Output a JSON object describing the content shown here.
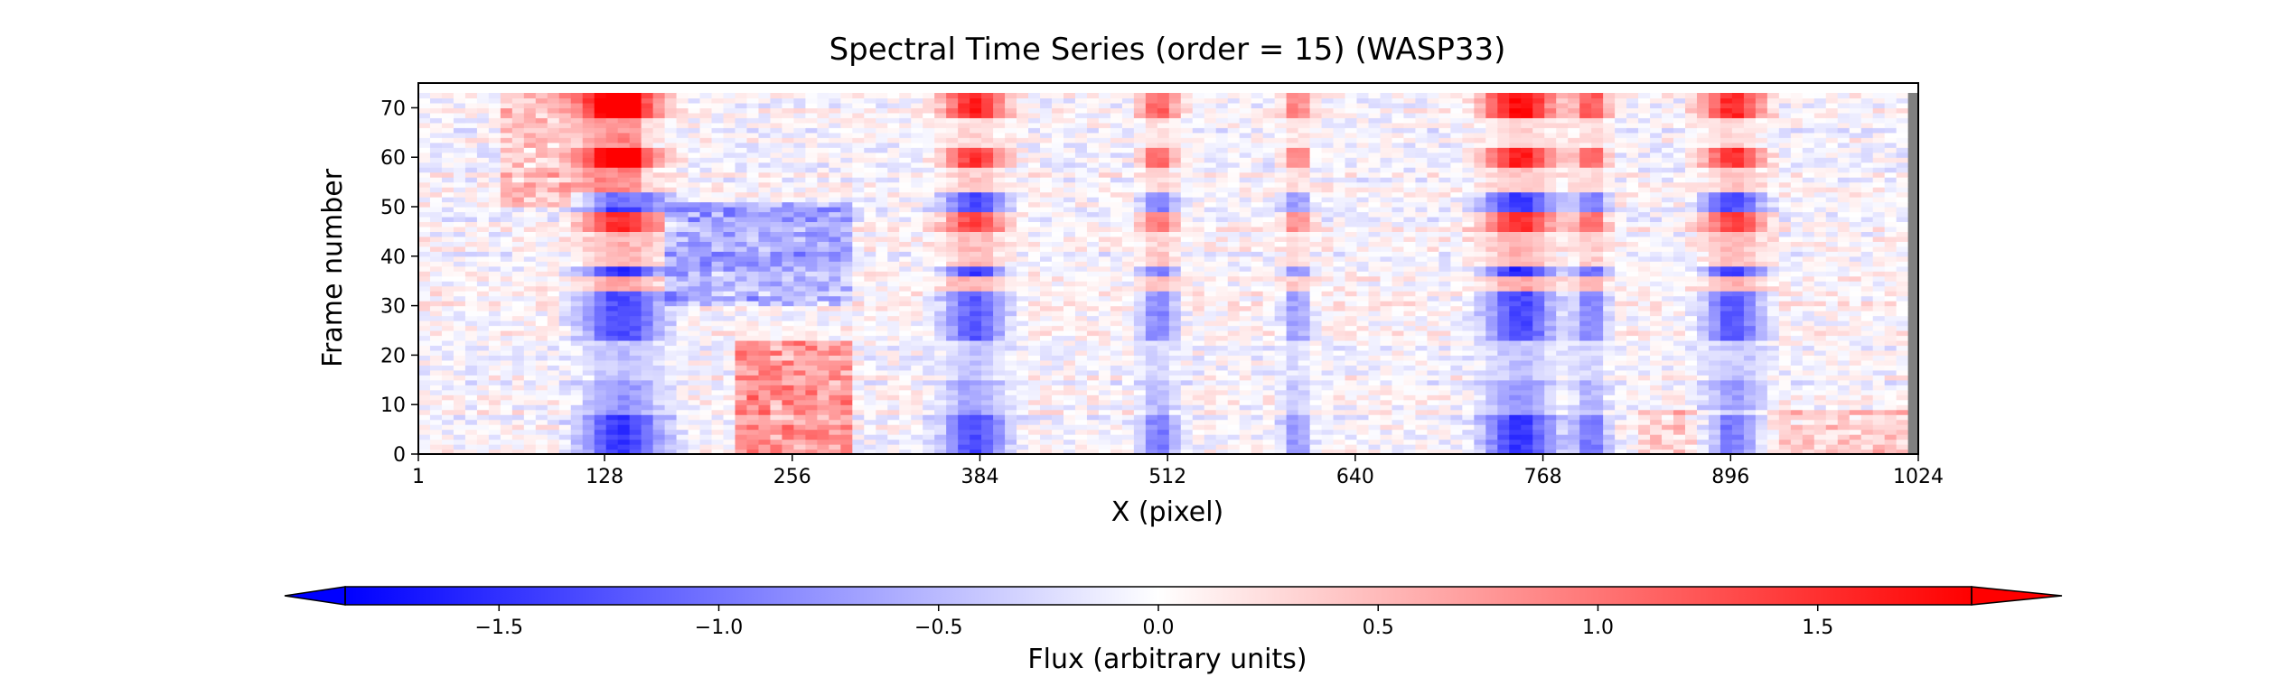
{
  "chart_data": {
    "type": "heatmap",
    "title": "Spectral Time Series (order = 15) (WASP33)",
    "xlabel": "X (pixel)",
    "ylabel": "Frame number",
    "xlim": [
      1,
      1024
    ],
    "ylim": [
      0,
      75
    ],
    "x_ticks": [
      1,
      128,
      256,
      384,
      512,
      640,
      768,
      896,
      1024
    ],
    "x_tick_labels": [
      "1",
      "128",
      "256",
      "384",
      "512",
      "640",
      "768",
      "896",
      "1024"
    ],
    "y_ticks": [
      0,
      10,
      20,
      30,
      40,
      50,
      60,
      70
    ],
    "y_tick_labels": [
      "0",
      "10",
      "20",
      "30",
      "40",
      "50",
      "60",
      "70"
    ],
    "n_frames": 73,
    "colormap": "bwr",
    "colorbar": {
      "label": "Flux (arbitrary units)",
      "range": [
        -1.85,
        1.85
      ],
      "extend": "both",
      "ticks": [
        -1.5,
        -1.0,
        -0.5,
        0.0,
        0.5,
        1.0,
        1.5
      ],
      "tick_labels": [
        "−1.5",
        "−1.0",
        "−0.5",
        "0.0",
        "0.5",
        "1.0",
        "1.5"
      ],
      "orientation": "horizontal",
      "placement": "bottom"
    },
    "masked_columns": [
      [
        1,
        4
      ],
      [
        1020,
        1024
      ]
    ],
    "absorption_lines": [
      {
        "center": 140,
        "width": 34,
        "amplitude": 1.8
      },
      {
        "center": 380,
        "width": 26,
        "amplitude": 1.6
      },
      {
        "center": 506,
        "width": 16,
        "amplitude": 1.2
      },
      {
        "center": 600,
        "width": 12,
        "amplitude": 1.0
      },
      {
        "center": 752,
        "width": 30,
        "amplitude": 1.8
      },
      {
        "center": 801,
        "width": 14,
        "amplitude": 1.3
      },
      {
        "center": 898,
        "width": 26,
        "amplitude": 1.6
      }
    ],
    "frame_pattern": [
      {
        "frames": [
          0,
          7
        ],
        "value": -1.3
      },
      {
        "frames": [
          8,
          14
        ],
        "value": -0.7
      },
      {
        "frames": [
          15,
          22
        ],
        "value": -0.4
      },
      {
        "frames": [
          23,
          32
        ],
        "value": -1.2
      },
      {
        "frames": [
          33,
          35
        ],
        "value": 0.6
      },
      {
        "frames": [
          36,
          37
        ],
        "value": -1.4
      },
      {
        "frames": [
          38,
          44
        ],
        "value": 0.5
      },
      {
        "frames": [
          45,
          48
        ],
        "value": 1.4
      },
      {
        "frames": [
          49,
          52
        ],
        "value": -1.3
      },
      {
        "frames": [
          53,
          57
        ],
        "value": 0.4
      },
      {
        "frames": [
          58,
          61
        ],
        "value": 1.5
      },
      {
        "frames": [
          62,
          67
        ],
        "value": 0.3
      },
      {
        "frames": [
          68,
          72
        ],
        "value": 1.6
      }
    ],
    "continuum_features": [
      {
        "x": [
          220,
          300
        ],
        "frames": [
          0,
          22
        ],
        "value": 1.0
      },
      {
        "x": [
          170,
          300
        ],
        "frames": [
          30,
          50
        ],
        "value": -0.8
      },
      {
        "x": [
          60,
          150
        ],
        "frames": [
          50,
          72
        ],
        "value": 0.6
      },
      {
        "x": [
          830,
          1020
        ],
        "frames": [
          0,
          8
        ],
        "value": 0.5
      }
    ]
  }
}
